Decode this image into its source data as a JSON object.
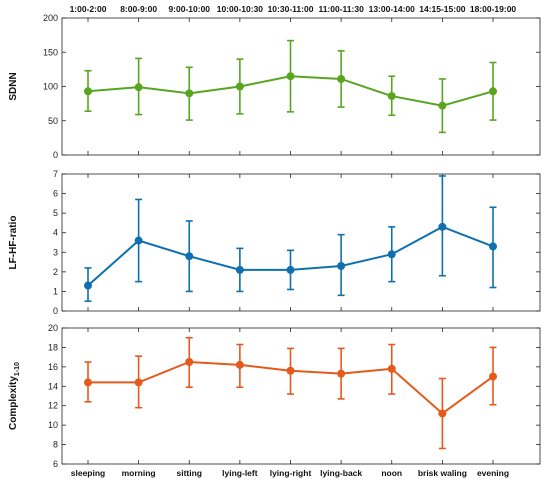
{
  "chart_data": {
    "type": "line",
    "top_labels": [
      "1:00-2:00",
      "8:00-9:00",
      "9:00-10:00",
      "10:00-10:30",
      "10:30-11:00",
      "11:00-11:30",
      "13:00-14:00",
      "14:15-15:00",
      "18:00-19:00"
    ],
    "categories": [
      "sleeping",
      "morning",
      "sitting",
      "lying-left",
      "lying-right",
      "lying-back",
      "noon",
      "brisk waling",
      "evening"
    ],
    "panels": [
      {
        "ylabel": "SDNN",
        "ylabel_sub": "",
        "color": "#5aa520",
        "ylim": [
          0,
          200
        ],
        "yticks": [
          0,
          50,
          100,
          150,
          200
        ],
        "values": [
          93,
          99,
          90,
          100,
          115,
          111,
          86,
          72,
          93
        ],
        "lower": [
          64,
          59,
          51,
          60,
          63,
          70,
          58,
          33,
          51
        ],
        "upper": [
          123,
          141,
          128,
          140,
          167,
          152,
          115,
          111,
          135
        ]
      },
      {
        "ylabel": "LF-HF-ratio",
        "ylabel_sub": "",
        "color": "#0f70b0",
        "ylim": [
          0,
          7
        ],
        "yticks": [
          0,
          1,
          2,
          3,
          4,
          5,
          6,
          7
        ],
        "values": [
          1.3,
          3.6,
          2.8,
          2.1,
          2.1,
          2.3,
          2.9,
          4.3,
          3.3
        ],
        "lower": [
          0.5,
          1.5,
          1.0,
          1.0,
          1.1,
          0.8,
          1.5,
          1.8,
          1.2
        ],
        "upper": [
          2.2,
          5.7,
          4.6,
          3.2,
          3.1,
          3.9,
          4.3,
          6.9,
          5.3
        ]
      },
      {
        "ylabel": "Complexity",
        "ylabel_sub": "1-10",
        "color": "#e45a1c",
        "ylim": [
          6,
          20
        ],
        "yticks": [
          6,
          8,
          10,
          12,
          14,
          16,
          18,
          20
        ],
        "values": [
          14.4,
          14.4,
          16.5,
          16.2,
          15.6,
          15.3,
          15.8,
          11.2,
          15.0
        ],
        "lower": [
          12.4,
          11.8,
          13.9,
          13.9,
          13.2,
          12.7,
          13.2,
          7.6,
          12.1
        ],
        "upper": [
          16.5,
          17.1,
          19.0,
          18.3,
          17.9,
          17.9,
          18.3,
          14.8,
          18.0
        ]
      }
    ]
  }
}
